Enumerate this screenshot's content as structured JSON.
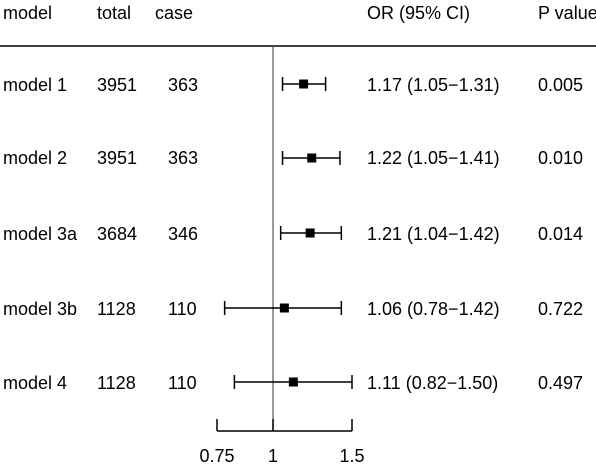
{
  "chart_data": {
    "type": "forest",
    "columns": {
      "model": "model",
      "total": "total",
      "case": "case",
      "or": "OR (95% CI)",
      "p": "P value"
    },
    "rows": [
      {
        "model": "model 1",
        "total": "3951",
        "case": "363",
        "or": 1.17,
        "lower": 1.05,
        "upper": 1.31,
        "or_text": "1.17 (1.05−1.31)",
        "p": "0.005"
      },
      {
        "model": "model 2",
        "total": "3951",
        "case": "363",
        "or": 1.22,
        "lower": 1.05,
        "upper": 1.41,
        "or_text": "1.22 (1.05−1.41)",
        "p": "0.010"
      },
      {
        "model": "model 3a",
        "total": "3684",
        "case": "346",
        "or": 1.21,
        "lower": 1.04,
        "upper": 1.42,
        "or_text": "1.21 (1.04−1.42)",
        "p": "0.014"
      },
      {
        "model": "model 3b",
        "total": "1128",
        "case": "110",
        "or": 1.06,
        "lower": 0.78,
        "upper": 1.42,
        "or_text": "1.06 (0.78−1.42)",
        "p": "0.722"
      },
      {
        "model": "model 4",
        "total": "1128",
        "case": "110",
        "or": 1.11,
        "lower": 0.82,
        "upper": 1.5,
        "or_text": "1.11 (0.82−1.50)",
        "p": "0.497"
      }
    ],
    "x_ticks": [
      0.75,
      1,
      1.5
    ],
    "x_tick_labels": [
      "0.75",
      "1",
      "1.5"
    ],
    "xlim": [
      0.75,
      1.5
    ],
    "x_scale": "log",
    "reference_line": 1,
    "colors": {
      "ink": "#000000",
      "reference": "#555555"
    }
  }
}
